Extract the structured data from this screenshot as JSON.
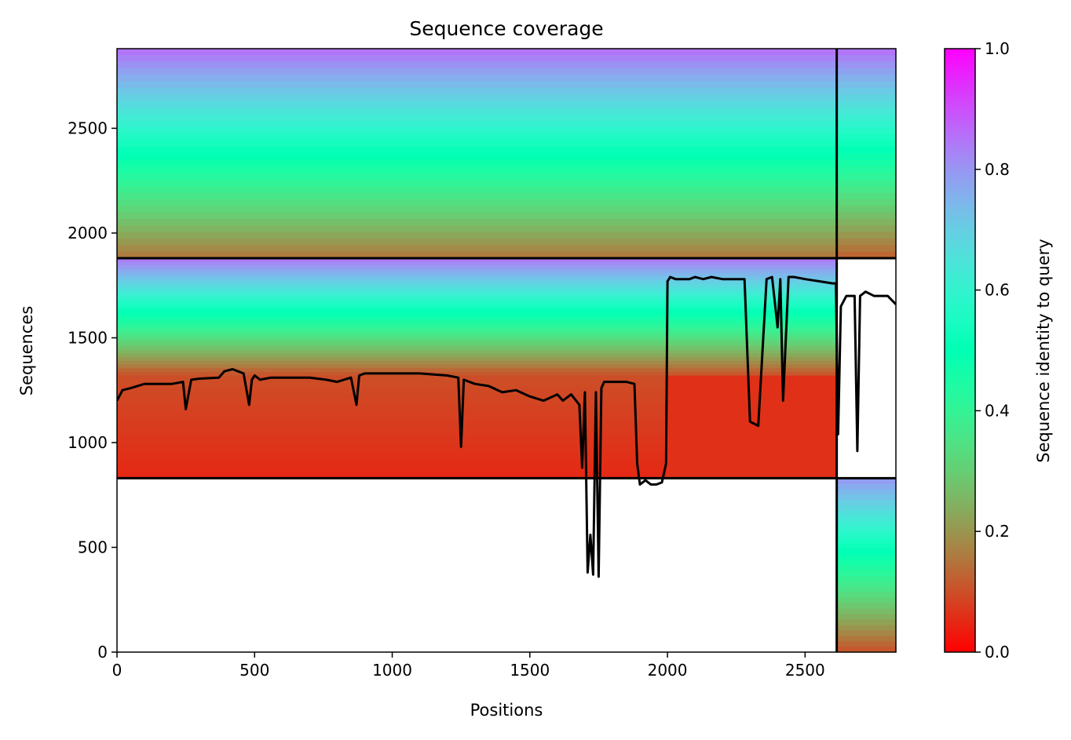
{
  "chart_data": {
    "type": "heatmap",
    "title": "Sequence coverage",
    "xlabel": "Positions",
    "ylabel": "Sequences",
    "xlim": [
      0,
      2830
    ],
    "ylim": [
      0,
      2880
    ],
    "xticks": [
      0,
      500,
      1000,
      1500,
      2000,
      2500
    ],
    "yticks": [
      0,
      500,
      1000,
      1500,
      2000,
      2500
    ],
    "xtick_labels": [
      "0",
      "500",
      "1000",
      "1500",
      "2000",
      "2500"
    ],
    "ytick_labels": [
      "0",
      "500",
      "1000",
      "1500",
      "2000",
      "2500"
    ],
    "colorbar": {
      "label": "Sequence identity to query",
      "range": [
        0.0,
        1.0
      ],
      "ticks": [
        0.0,
        0.2,
        0.4,
        0.6,
        0.8,
        1.0
      ],
      "tick_labels": [
        "0.0",
        "0.2",
        "0.4",
        "0.6",
        "0.8",
        "1.0"
      ],
      "colormap": "rainbow_r"
    },
    "dividers": {
      "vertical_x": [
        2615
      ],
      "horizontal": [
        {
          "y": 1880,
          "x_range": [
            0,
            2830
          ]
        },
        {
          "y": 830,
          "x_range": [
            0,
            2830
          ]
        }
      ]
    },
    "blocks": [
      {
        "x_range": [
          0,
          2615
        ],
        "y_range": [
          1880,
          2880
        ],
        "identity_top": 0.86,
        "identity_bottom": 0.15
      },
      {
        "x_range": [
          2615,
          2830
        ],
        "y_range": [
          1880,
          2880
        ],
        "identity_top": 0.86,
        "identity_bottom": 0.12
      },
      {
        "x_range": [
          0,
          2615
        ],
        "y_range": [
          1320,
          1880
        ],
        "identity_top": 0.85,
        "identity_bottom": 0.1
      },
      {
        "x_range": [
          0,
          2000
        ],
        "y_range": [
          830,
          1320
        ],
        "identity_top": 0.1,
        "identity_bottom": 0.05
      },
      {
        "x_range": [
          2000,
          2615
        ],
        "y_range": [
          830,
          1320
        ],
        "identity_top": 0.06,
        "identity_bottom": 0.06
      },
      {
        "x_range": [
          2615,
          2830
        ],
        "y_range": [
          0,
          830
        ],
        "identity_top": 0.8,
        "identity_bottom": 0.1
      }
    ],
    "coverage_line": {
      "x": [
        0,
        20,
        50,
        100,
        200,
        240,
        250,
        270,
        300,
        370,
        390,
        420,
        460,
        480,
        490,
        500,
        520,
        560,
        600,
        640,
        700,
        760,
        800,
        850,
        870,
        880,
        900,
        950,
        1000,
        1100,
        1200,
        1240,
        1250,
        1260,
        1300,
        1350,
        1400,
        1450,
        1500,
        1550,
        1600,
        1620,
        1650,
        1680,
        1690,
        1700,
        1710,
        1720,
        1730,
        1740,
        1750,
        1760,
        1770,
        1800,
        1850,
        1880,
        1890,
        1900,
        1920,
        1940,
        1960,
        1980,
        1995,
        2000,
        2010,
        2030,
        2060,
        2080,
        2100,
        2130,
        2160,
        2200,
        2250,
        2280,
        2300,
        2330,
        2360,
        2380,
        2400,
        2410,
        2420,
        2440,
        2460,
        2500,
        2550,
        2600,
        2612,
        2620,
        2630,
        2650,
        2680,
        2690,
        2700,
        2710,
        2720,
        2750,
        2780,
        2800,
        2830
      ],
      "y": [
        1200,
        1250,
        1260,
        1280,
        1280,
        1290,
        1160,
        1300,
        1305,
        1310,
        1340,
        1350,
        1330,
        1180,
        1300,
        1320,
        1300,
        1310,
        1310,
        1310,
        1310,
        1300,
        1290,
        1310,
        1180,
        1320,
        1330,
        1330,
        1330,
        1330,
        1320,
        1310,
        980,
        1300,
        1280,
        1270,
        1240,
        1250,
        1220,
        1200,
        1230,
        1200,
        1230,
        1180,
        880,
        1240,
        380,
        560,
        370,
        1240,
        360,
        1260,
        1290,
        1290,
        1290,
        1280,
        900,
        800,
        820,
        800,
        800,
        810,
        900,
        1770,
        1790,
        1780,
        1780,
        1780,
        1790,
        1780,
        1790,
        1780,
        1780,
        1780,
        1100,
        1080,
        1780,
        1790,
        1550,
        1780,
        1200,
        1790,
        1790,
        1780,
        1770,
        1760,
        1760,
        1040,
        1650,
        1700,
        1700,
        960,
        1700,
        1710,
        1720,
        1700,
        1700,
        1700,
        1660
      ]
    }
  }
}
